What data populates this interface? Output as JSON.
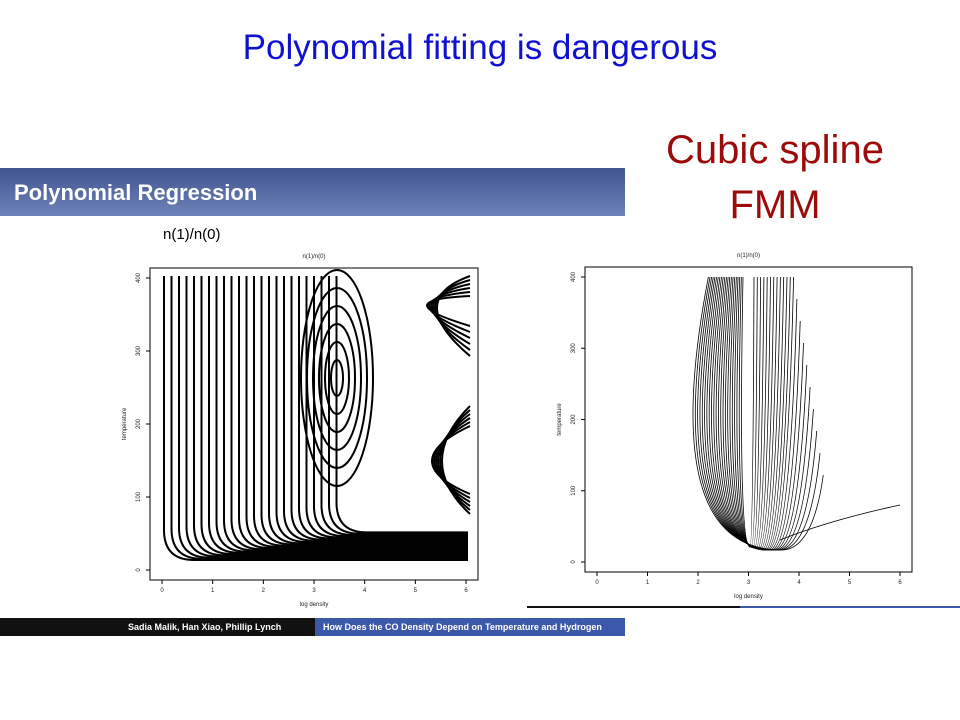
{
  "title": "Polynomial fitting is dangerous",
  "callout": [
    "Cubic spline",
    "FMM"
  ],
  "left_panel": {
    "header": "Polynomial Regression",
    "label": "n(1)/n(0)",
    "footer_authors": "Sadia Malik, Han Xiao, Phillip Lynch",
    "footer_title": "How Does the CO Density Depend on Temperature and Hydrogen"
  },
  "plots": [
    {
      "title": "n(1)/n(0)",
      "xlabel": "log density",
      "ylabel": "temperature",
      "xticks": [
        0,
        1,
        2,
        3,
        4,
        5,
        6
      ],
      "yticks": [
        0,
        100,
        200,
        300,
        400
      ]
    },
    {
      "title": "n(1)/n(0)",
      "xlabel": "log density",
      "ylabel": "temperature",
      "xticks": [
        0,
        1,
        2,
        3,
        4,
        5,
        6
      ],
      "yticks": [
        0,
        100,
        200,
        300,
        400
      ]
    }
  ]
}
